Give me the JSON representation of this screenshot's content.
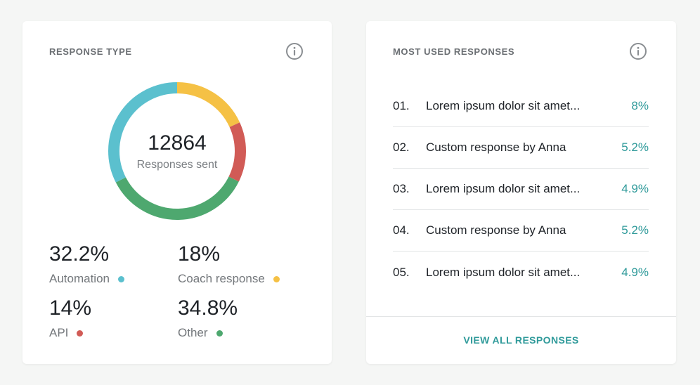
{
  "response_type": {
    "title": "RESPONSE TYPE",
    "total": "12864",
    "caption": "Responses sent",
    "segments": [
      {
        "name": "Coach response",
        "value": 18,
        "color": "#f5c145"
      },
      {
        "name": "API",
        "value": 14,
        "color": "#d15b56"
      },
      {
        "name": "Other",
        "value": 34.8,
        "color": "#4ea86f"
      },
      {
        "name": "Automation",
        "value": 32.2,
        "color": "#5bc0ce"
      }
    ],
    "stats": {
      "automation": {
        "value": "32.2%",
        "label": "Automation",
        "color": "#5bc0ce"
      },
      "coach": {
        "value": "18%",
        "label": "Coach response",
        "color": "#f5c145"
      },
      "api": {
        "value": "14%",
        "label": "API",
        "color": "#d15b56"
      },
      "other": {
        "value": "34.8%",
        "label": "Other",
        "color": "#4ea86f"
      }
    }
  },
  "most_used": {
    "title": "MOST USED RESPONSES",
    "items": [
      {
        "num": "01.",
        "text": "Lorem ipsum dolor sit amet...",
        "pct": "8%"
      },
      {
        "num": "02.",
        "text": "Custom response by Anna",
        "pct": "5.2%"
      },
      {
        "num": "03.",
        "text": "Lorem ipsum dolor sit amet...",
        "pct": "4.9%"
      },
      {
        "num": "04.",
        "text": "Custom response by Anna",
        "pct": "5.2%"
      },
      {
        "num": "05.",
        "text": "Lorem ipsum dolor sit amet...",
        "pct": "4.9%"
      }
    ],
    "view_all": "VIEW ALL RESPONSES"
  },
  "colors": {
    "accent": "#2f9a9a"
  },
  "icons": {
    "info": "info-icon"
  }
}
